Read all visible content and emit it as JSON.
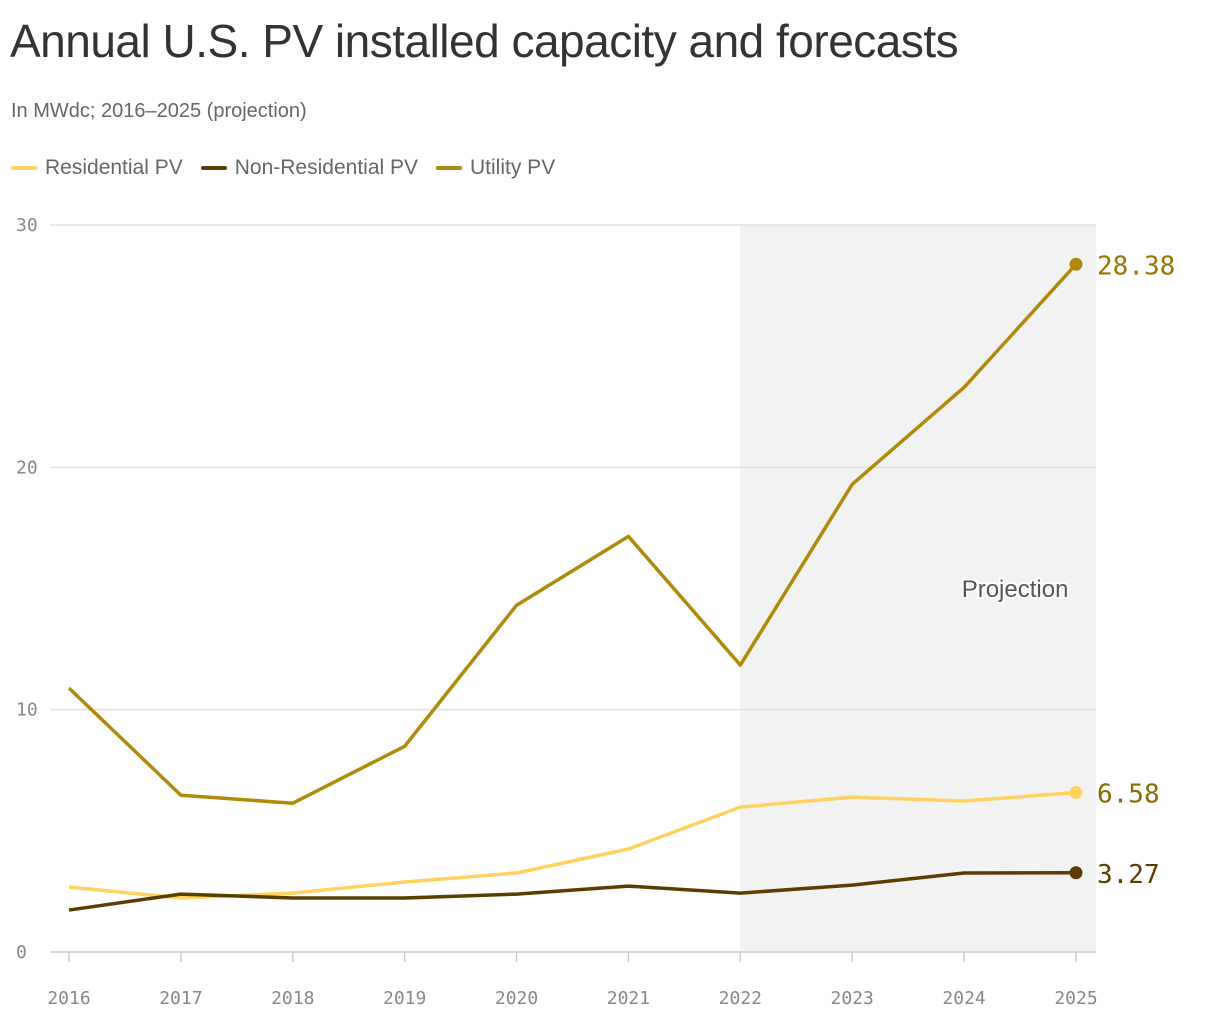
{
  "chart_data": {
    "type": "line",
    "title": "Annual U.S. PV installed capacity and forecasts",
    "subtitle": "In MWdc; 2016–2025 (projection)",
    "x": [
      "2016",
      "2017",
      "2018",
      "2019",
      "2020",
      "2021",
      "2022",
      "2023",
      "2024",
      "2025"
    ],
    "ylim": [
      0,
      30
    ],
    "yticks": [
      "0",
      "10",
      "20",
      "30"
    ],
    "grid": true,
    "legend": "top-left",
    "projection": {
      "label": "Projection",
      "from": "2022",
      "to": "2025",
      "color": "#f2f2f2"
    },
    "series": [
      {
        "name": "Residential PV",
        "color": "#ffd25f",
        "label_color": "#8a6a00",
        "end_label": "6.58",
        "values": [
          2.68,
          2.23,
          2.43,
          2.89,
          3.26,
          4.25,
          5.98,
          6.39,
          6.23,
          6.58
        ]
      },
      {
        "name": "Non-Residential PV",
        "color": "#5c3d00",
        "label_color": "#5c3d00",
        "end_label": "3.27",
        "values": [
          1.73,
          2.39,
          2.23,
          2.23,
          2.39,
          2.72,
          2.43,
          2.76,
          3.26,
          3.27
        ]
      },
      {
        "name": "Utility PV",
        "color": "#b08a0a",
        "label_color": "#9a7500",
        "end_label": "28.38",
        "values": [
          10.89,
          6.47,
          6.14,
          8.49,
          14.31,
          17.15,
          11.84,
          19.3,
          23.3,
          28.38
        ]
      }
    ]
  }
}
